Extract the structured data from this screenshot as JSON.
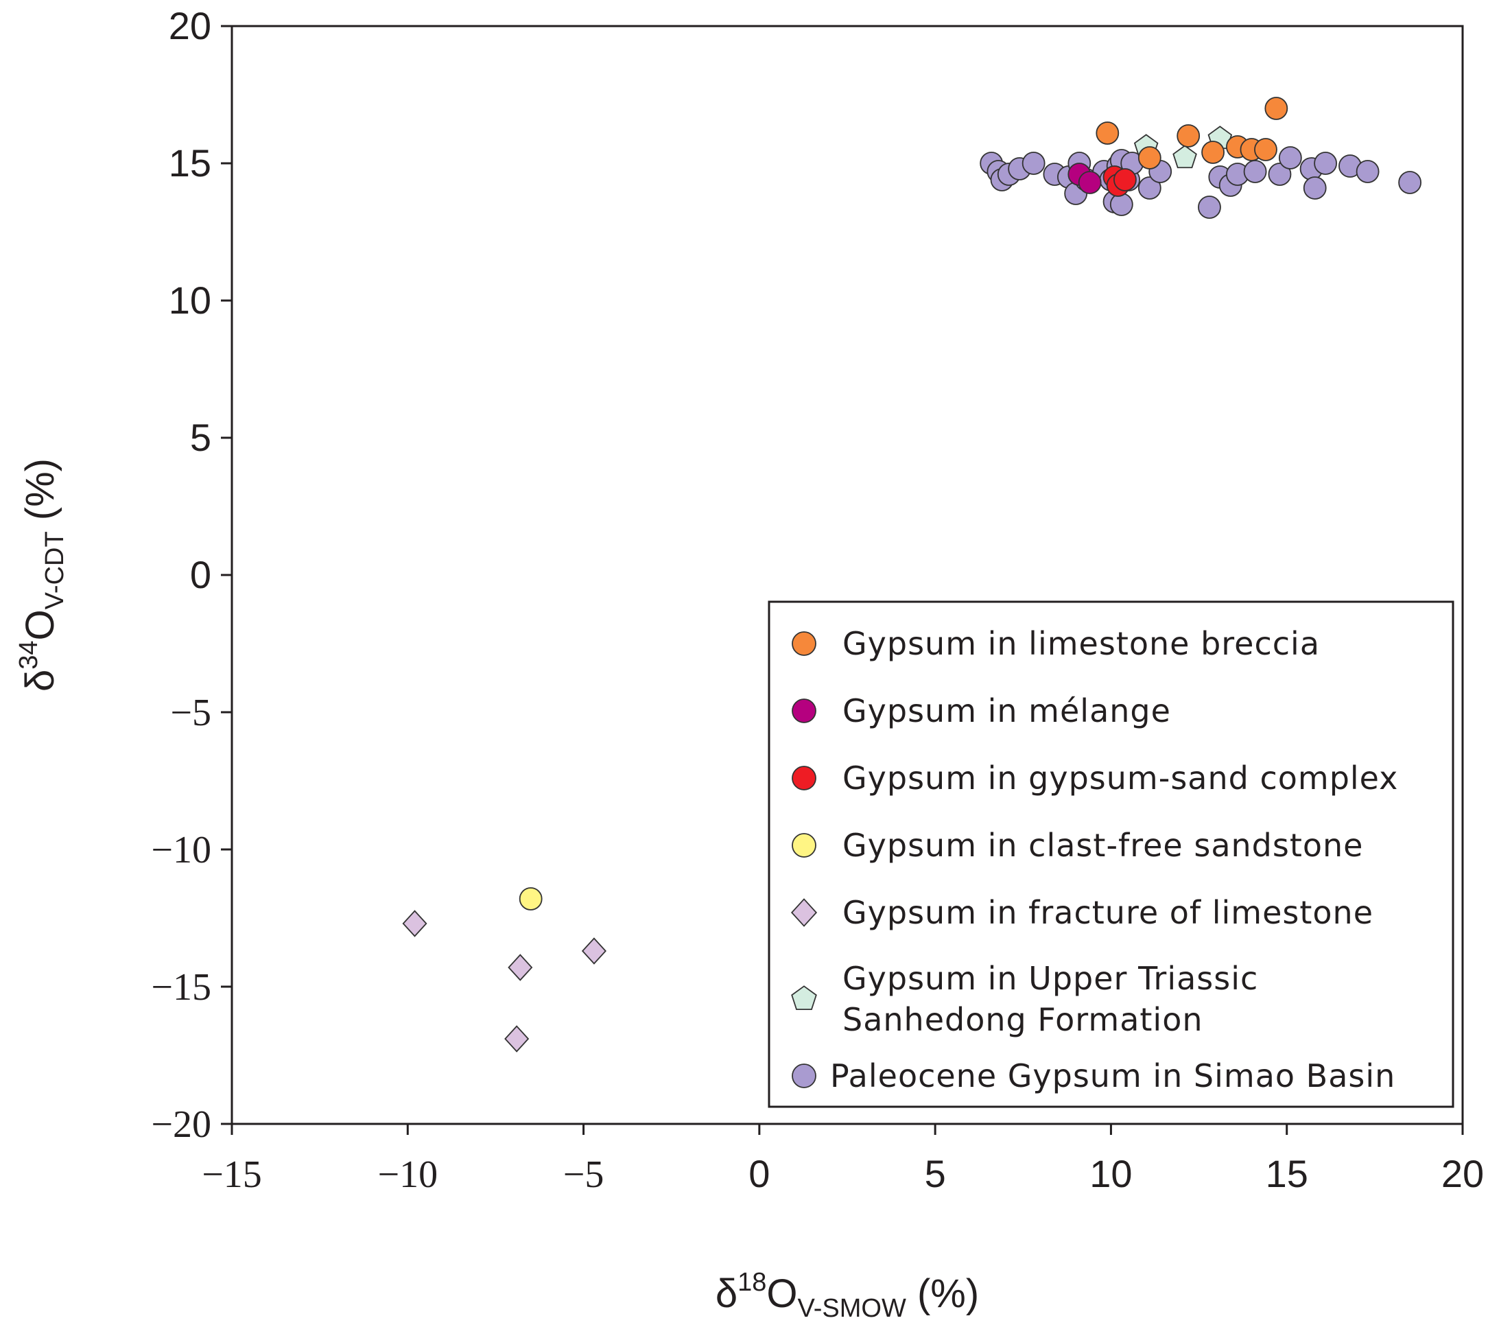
{
  "chart_data": {
    "type": "scatter",
    "title": "",
    "xlabel": {
      "base": "δ",
      "sup": "18",
      "elem": "O",
      "sub": "V-SMOW",
      "unit": " (%)"
    },
    "ylabel": {
      "base": "δ",
      "sup": "34",
      "elem": "O",
      "sub": "V-CDT",
      "unit": " (%)"
    },
    "xlim": [
      -15,
      20
    ],
    "ylim": [
      -20,
      20
    ],
    "xticks": [
      -15,
      -10,
      -5,
      0,
      5,
      10,
      15,
      20
    ],
    "yticks": [
      -20,
      -15,
      -10,
      -5,
      0,
      5,
      10,
      15,
      20
    ],
    "xtick_labels": [
      "−15",
      "−10",
      "−5",
      "0",
      "5",
      "10",
      "15",
      "20"
    ],
    "ytick_labels": [
      "−20",
      "−15",
      "−10",
      "−5",
      "0",
      "5",
      "10",
      "15",
      "20"
    ],
    "grid": false,
    "legend_position": "bottom-right",
    "series": [
      {
        "name": "Paleocene Gypsum in Simao Basin",
        "lines": [
          "Paleocene Gypsum in Simao Basin"
        ],
        "marker": "circle",
        "color": "#a99bd0",
        "points": [
          [
            6.6,
            15.0
          ],
          [
            6.8,
            14.7
          ],
          [
            6.9,
            14.4
          ],
          [
            7.1,
            14.6
          ],
          [
            7.4,
            14.8
          ],
          [
            7.8,
            15.0
          ],
          [
            8.4,
            14.6
          ],
          [
            8.8,
            14.5
          ],
          [
            9.0,
            13.9
          ],
          [
            9.1,
            15.0
          ],
          [
            9.3,
            14.4
          ],
          [
            9.8,
            14.7
          ],
          [
            10.0,
            14.4
          ],
          [
            10.1,
            13.6
          ],
          [
            10.2,
            14.9
          ],
          [
            10.3,
            15.1
          ],
          [
            10.3,
            13.5
          ],
          [
            10.5,
            14.4
          ],
          [
            10.6,
            15.0
          ],
          [
            11.1,
            14.1
          ],
          [
            11.4,
            14.7
          ],
          [
            12.8,
            13.4
          ],
          [
            13.1,
            14.5
          ],
          [
            13.4,
            14.2
          ],
          [
            13.6,
            14.6
          ],
          [
            14.1,
            14.7
          ],
          [
            14.8,
            14.6
          ],
          [
            15.1,
            15.2
          ],
          [
            15.7,
            14.8
          ],
          [
            15.8,
            14.1
          ],
          [
            16.1,
            15.0
          ],
          [
            16.8,
            14.9
          ],
          [
            17.3,
            14.7
          ],
          [
            18.5,
            14.3
          ]
        ]
      },
      {
        "name": "Gypsum in Upper Triassic Sanhedong Formation",
        "lines": [
          "Gypsum in Upper Triassic",
          "Sanhedong Formation"
        ],
        "marker": "pentagon",
        "color": "#d4ede0",
        "points": [
          [
            11.0,
            15.6
          ],
          [
            12.1,
            15.2
          ],
          [
            13.1,
            15.9
          ]
        ]
      },
      {
        "name": "Gypsum in limestone breccia",
        "lines": [
          "Gypsum in limestone breccia"
        ],
        "marker": "circle",
        "color": "#f6883a",
        "points": [
          [
            9.9,
            16.1
          ],
          [
            11.1,
            15.2
          ],
          [
            12.2,
            16.0
          ],
          [
            12.9,
            15.4
          ],
          [
            13.6,
            15.6
          ],
          [
            14.0,
            15.5
          ],
          [
            14.4,
            15.5
          ],
          [
            14.7,
            17.0
          ]
        ]
      },
      {
        "name": "Gypsum in mélange",
        "lines": [
          "Gypsum in mélange"
        ],
        "marker": "circle",
        "color": "#b5007f",
        "points": [
          [
            9.1,
            14.6
          ],
          [
            9.4,
            14.3
          ]
        ]
      },
      {
        "name": "Gypsum in gypsum-sand complex",
        "lines": [
          "Gypsum in gypsum-sand complex"
        ],
        "marker": "circle",
        "color": "#ee1c24",
        "points": [
          [
            10.1,
            14.5
          ],
          [
            10.2,
            14.2
          ],
          [
            10.4,
            14.4
          ]
        ]
      },
      {
        "name": "Gypsum in clast-free sandstone",
        "lines": [
          "Gypsum in clast-free sandstone"
        ],
        "marker": "circle",
        "color": "#fff584",
        "points": [
          [
            -6.5,
            -11.8
          ]
        ]
      },
      {
        "name": "Gypsum in fracture of limestone",
        "lines": [
          "Gypsum in fracture of limestone"
        ],
        "marker": "diamond",
        "color": "#dbc2e0",
        "points": [
          [
            -9.8,
            -12.7
          ],
          [
            -6.8,
            -14.3
          ],
          [
            -4.7,
            -13.7
          ],
          [
            -6.9,
            -16.9
          ]
        ]
      }
    ],
    "legend_order": [
      "Gypsum in limestone breccia",
      "Gypsum in mélange",
      "Gypsum in gypsum-sand complex",
      "Gypsum in clast-free sandstone",
      "Gypsum in fracture of limestone",
      "Gypsum in Upper Triassic Sanhedong Formation",
      "Paleocene Gypsum in Simao Basin"
    ]
  }
}
